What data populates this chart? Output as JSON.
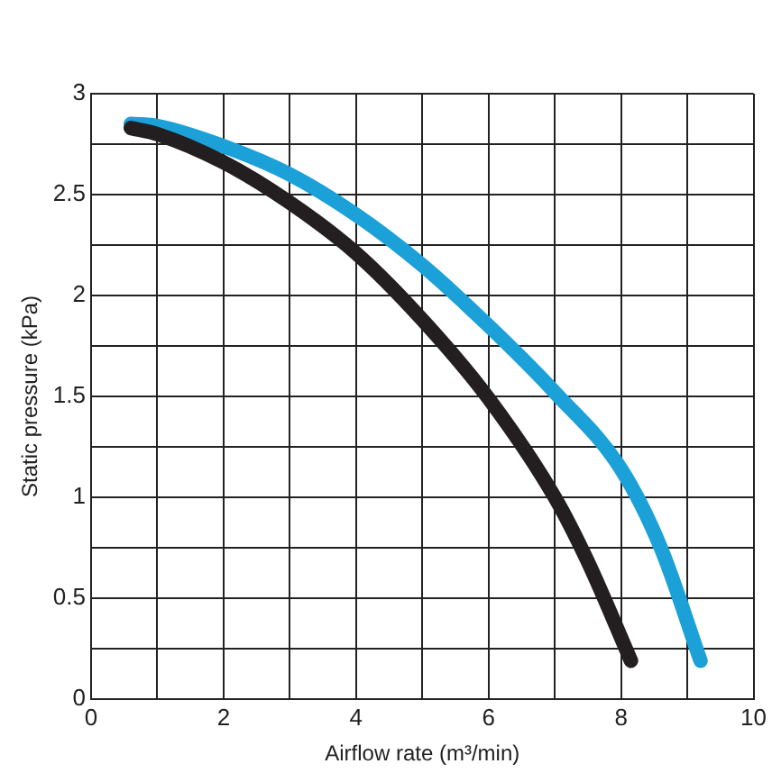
{
  "chart_data": {
    "type": "line",
    "xlabel": "Airflow rate (m³/min)",
    "ylabel": "Static pressure (kPa)",
    "xlim": [
      0,
      10
    ],
    "ylim": [
      0,
      3
    ],
    "xticks": [
      0,
      {
        "value": 1,
        "label": null
      },
      2,
      {
        "value": 3,
        "label": null
      },
      4,
      {
        "value": 5,
        "label": null
      },
      6,
      {
        "value": 7,
        "label": null
      },
      8,
      {
        "value": 9,
        "label": null
      },
      10
    ],
    "yticks": [
      0,
      {
        "value": 0.25,
        "label": null
      },
      0.5,
      {
        "value": 0.75,
        "label": null
      },
      1,
      {
        "value": 1.25,
        "label": null
      },
      1.5,
      {
        "value": 1.75,
        "label": null
      },
      2,
      {
        "value": 2.25,
        "label": null
      },
      2.5,
      {
        "value": 2.75,
        "label": null
      },
      3
    ],
    "grid": true,
    "legend": false,
    "marker": "none",
    "line_style": "solid",
    "series": [
      {
        "color": "#231f20",
        "x": [
          0.6,
          1,
          2,
          3,
          4,
          5,
          6,
          7,
          7.5,
          8.15
        ],
        "values": [
          2.83,
          2.8,
          2.66,
          2.46,
          2.21,
          1.88,
          1.49,
          1.0,
          0.68,
          0.19
        ]
      },
      {
        "color": "#1ba1d8",
        "x": [
          0.6,
          1,
          2,
          3,
          4,
          5,
          6,
          7,
          8,
          8.6,
          9.2
        ],
        "values": [
          2.85,
          2.84,
          2.74,
          2.6,
          2.4,
          2.15,
          1.85,
          1.52,
          1.14,
          0.75,
          0.19
        ]
      }
    ]
  }
}
